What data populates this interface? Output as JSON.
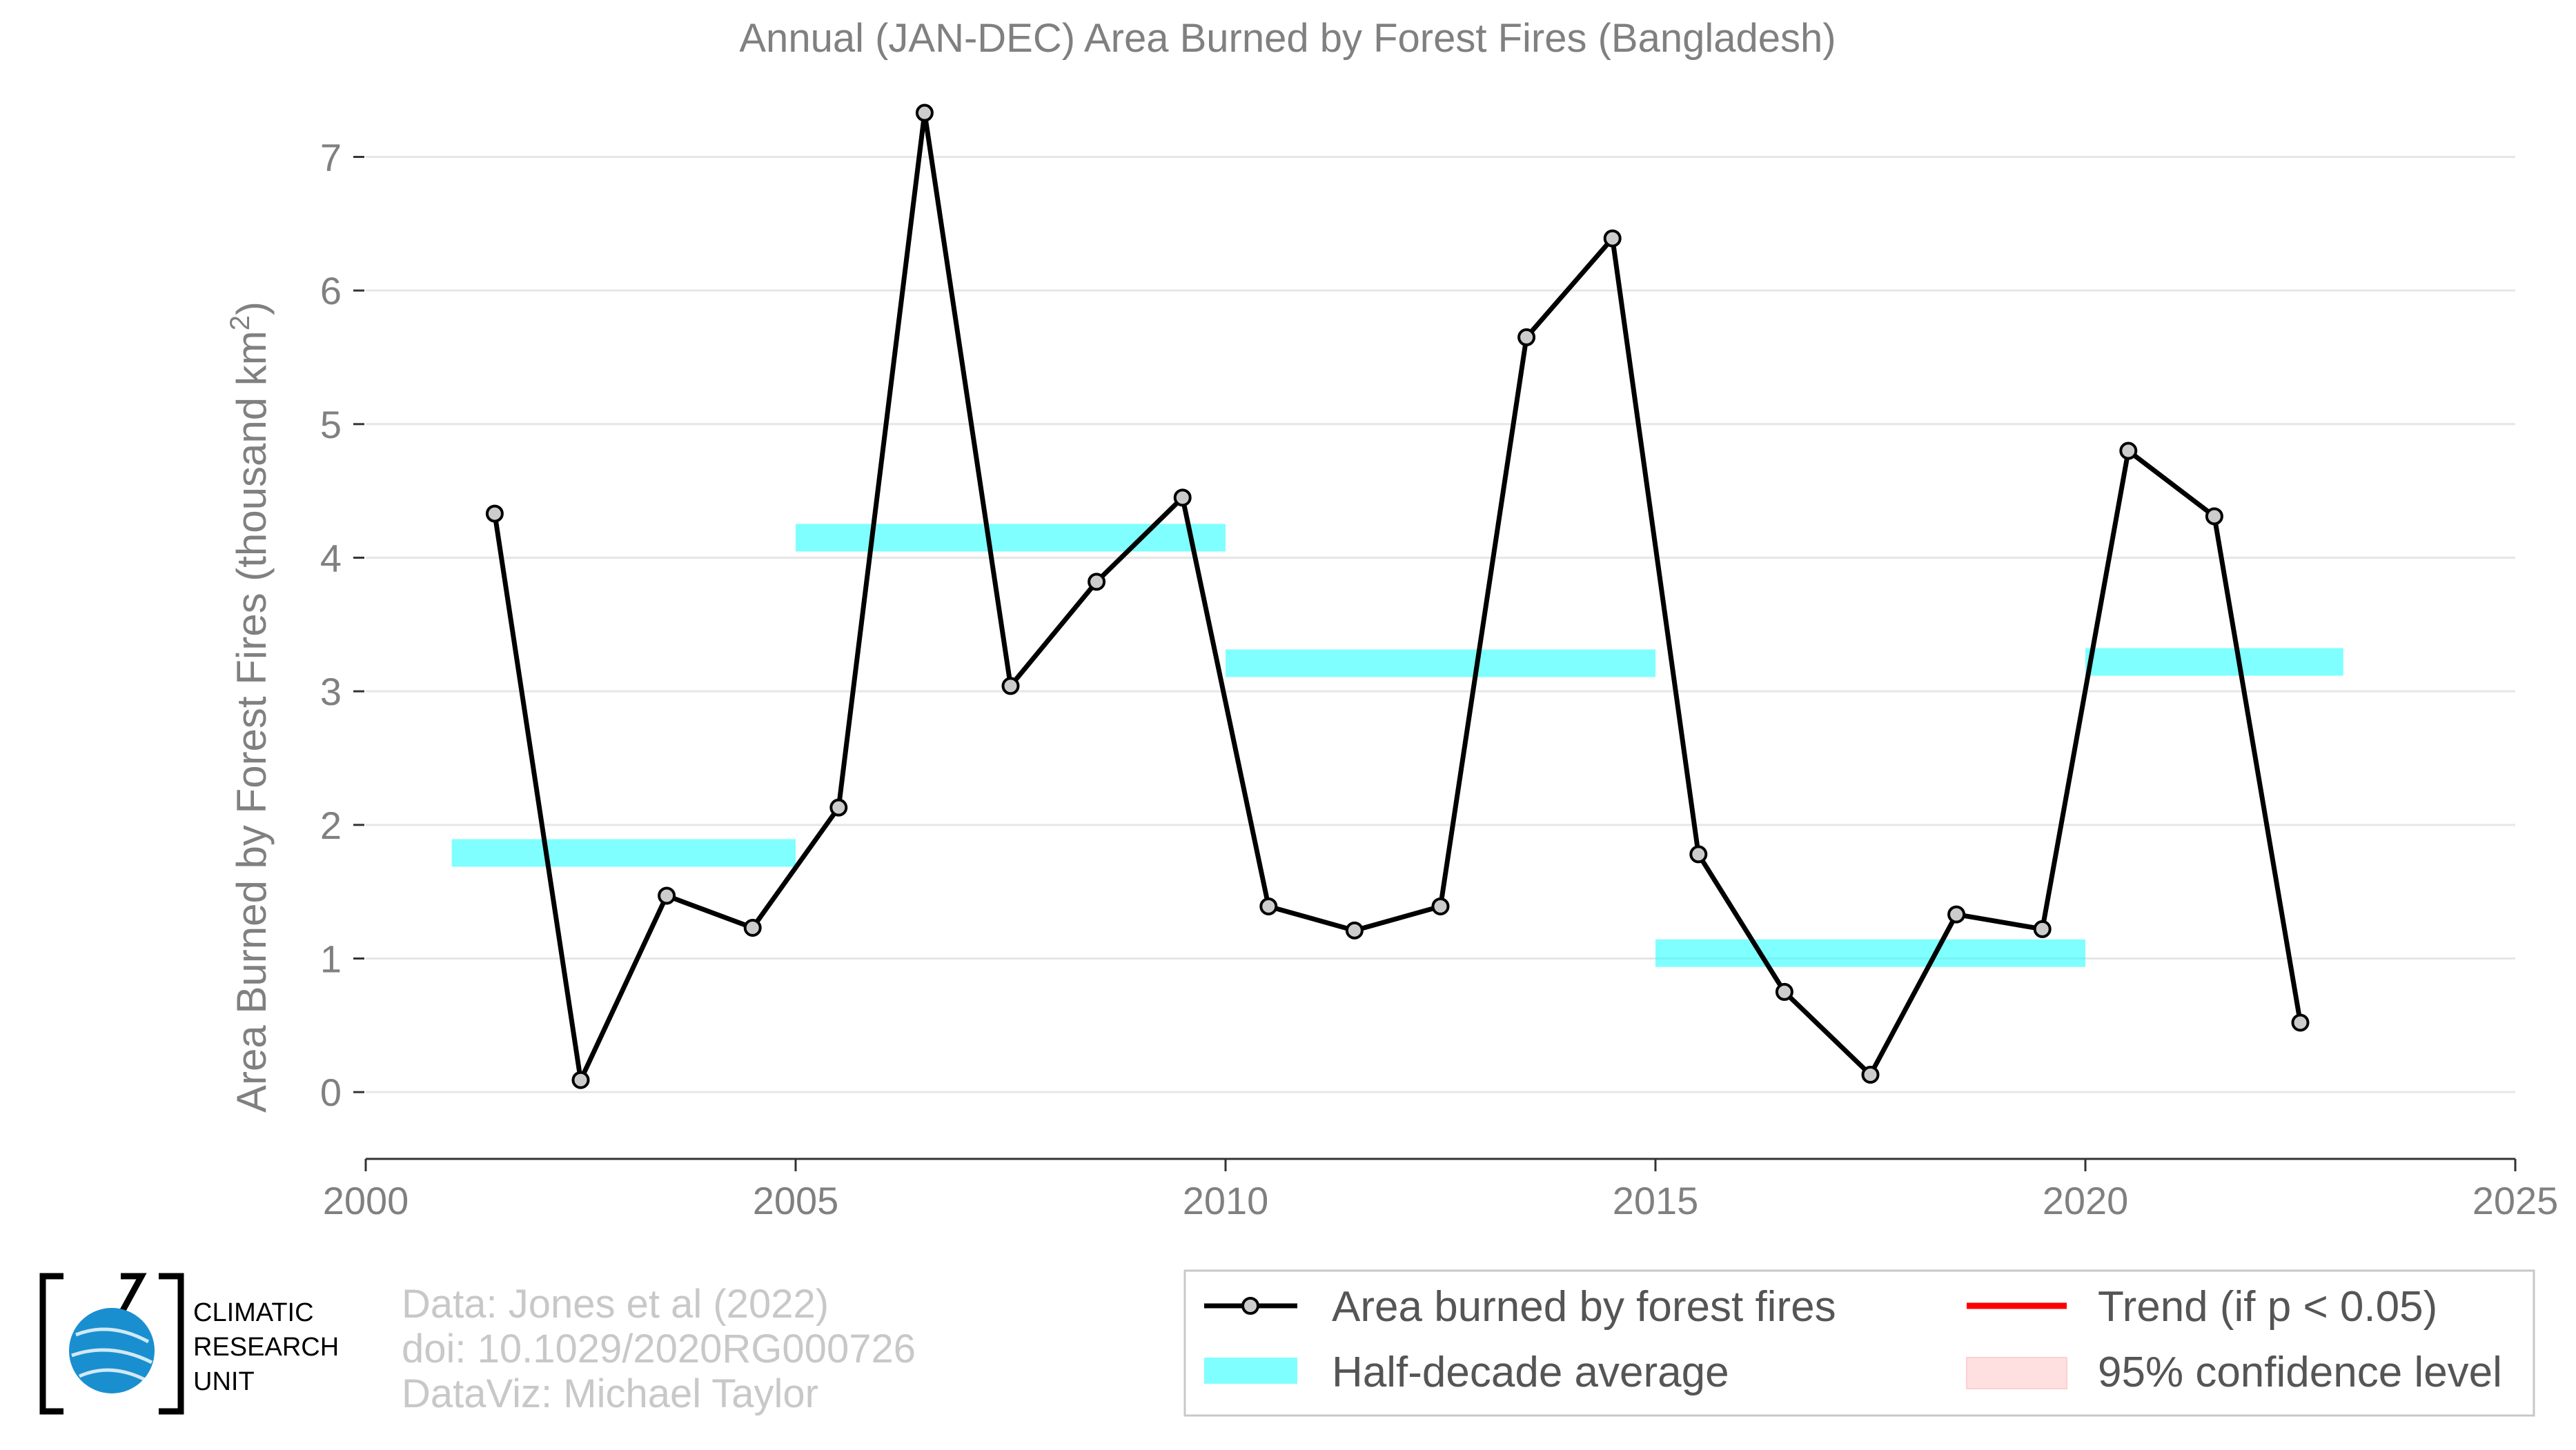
{
  "chart_data": {
    "type": "line",
    "title": "Annual (JAN-DEC) Area Burned by Forest Fires (Bangladesh)",
    "ylabel": "Area Burned by Forest Fires (thousand km",
    "ylabel_sup": "2",
    "ylabel_close": ")",
    "xlabel": "",
    "xlim": [
      2000,
      2025
    ],
    "ylim": [
      -0.5,
      7.4
    ],
    "xticks": [
      "2000",
      "2005",
      "2010",
      "2015",
      "2020",
      "2025"
    ],
    "yticks": [
      "0",
      "1",
      "2",
      "3",
      "4",
      "5",
      "6",
      "7"
    ],
    "grid": true,
    "series": [
      {
        "name": "Area burned by forest fires",
        "color": "#000000",
        "marker_color": "#cccccc",
        "x": [
          2001.5,
          2002.5,
          2003.5,
          2004.5,
          2005.5,
          2006.5,
          2007.5,
          2008.5,
          2009.5,
          2010.5,
          2011.5,
          2012.5,
          2013.5,
          2014.5,
          2015.5,
          2016.5,
          2017.5,
          2018.5,
          2019.5,
          2020.5,
          2021.5,
          2022.5
        ],
        "values": [
          4.33,
          0.09,
          1.47,
          1.23,
          2.13,
          7.33,
          3.04,
          3.82,
          4.45,
          1.39,
          1.21,
          1.39,
          5.65,
          6.39,
          1.78,
          0.75,
          0.13,
          1.33,
          1.22,
          4.8,
          4.31,
          0.52
        ]
      }
    ],
    "half_decade_averages": [
      {
        "x_start": 2001,
        "x_end": 2005,
        "value": 1.79
      },
      {
        "x_start": 2005,
        "x_end": 2010,
        "value": 4.15
      },
      {
        "x_start": 2010,
        "x_end": 2015,
        "value": 3.21
      },
      {
        "x_start": 2015,
        "x_end": 2020,
        "value": 1.04
      },
      {
        "x_start": 2020,
        "x_end": 2023,
        "value": 3.22
      }
    ],
    "average_color": "#00ffff",
    "legend": {
      "placement": "bottom-right",
      "items": [
        {
          "label": "Area burned by forest fires",
          "kind": "line-marker",
          "color": "#000000"
        },
        {
          "label": "Trend (if p < 0.05)",
          "kind": "line",
          "color": "#ff0000"
        },
        {
          "label": "Half-decade average",
          "kind": "band",
          "color": "#00ffff"
        },
        {
          "label": "95% confidence level",
          "kind": "band",
          "color": "#ffcccc"
        }
      ]
    }
  },
  "credits": {
    "line1": "Data: Jones et al (2022)",
    "line2": "doi: 10.1029/2020RG000726",
    "line3": "DataViz: Michael Taylor"
  },
  "logo": {
    "line1": "CLIMATIC",
    "line2": "RESEARCH",
    "line3": "UNIT",
    "globe_color": "#1a8fd0",
    "icon": "globe-icon"
  }
}
